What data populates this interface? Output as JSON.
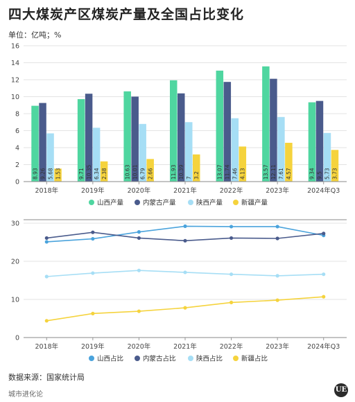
{
  "header": {
    "title": "四大煤炭产区煤炭产量及全国占比变化",
    "unit": "单位：亿吨；%"
  },
  "footer": {
    "source": "数据来源：国家统计局",
    "brand": "城市进化论",
    "logo_text": "UE"
  },
  "chart_data": [
    {
      "type": "bar",
      "categories": [
        "2018年",
        "2019年",
        "2020年",
        "2021年",
        "2022年",
        "2023年",
        "2024年Q3"
      ],
      "ylim": [
        0,
        16
      ],
      "yticks": [
        0,
        2,
        4,
        6,
        8,
        10,
        12,
        14,
        16
      ],
      "grid": true,
      "legend": "bottom",
      "series": [
        {
          "name": "山西产量",
          "color": "#4fd6a0",
          "values": [
            8.93,
            9.71,
            10.63,
            11.93,
            13.07,
            13.57,
            9.34
          ],
          "labels": [
            "8.93",
            "9.71",
            "10.63",
            "11.93",
            "13.07",
            "13.57",
            "9.34"
          ]
        },
        {
          "name": "内蒙古产量",
          "color": "#4a5b8c",
          "values": [
            9.26,
            10.35,
            10.01,
            10.39,
            11.74,
            12.11,
            9.5
          ],
          "labels": [
            "9.26",
            "10.35",
            "10.01",
            "10.39",
            "11.74",
            "12.11",
            "9.5"
          ]
        },
        {
          "name": "陕西产量",
          "color": "#a6def5",
          "values": [
            5.68,
            6.34,
            6.79,
            7,
            7.46,
            7.61,
            5.73
          ],
          "labels": [
            "5.68",
            "6.34",
            "6.79",
            "7",
            "7.46",
            "7.61",
            "5.73"
          ]
        },
        {
          "name": "新疆产量",
          "color": "#f5d33d",
          "values": [
            1.53,
            2.38,
            2.66,
            3.2,
            4.13,
            4.57,
            3.73
          ],
          "labels": [
            "1.53",
            "2.38",
            "2.66",
            "3.2",
            "4.13",
            "4.57",
            "3.73"
          ]
        }
      ]
    },
    {
      "type": "line",
      "categories": [
        "2018年",
        "2019年",
        "2020年",
        "2021年",
        "2022年",
        "2023年",
        "2024年Q3"
      ],
      "ylim": [
        0,
        30
      ],
      "yticks": [
        0,
        10,
        20,
        30
      ],
      "grid": true,
      "legend": "bottom",
      "series": [
        {
          "name": "山西占比",
          "color": "#4aa3dc",
          "values": [
            25.1,
            25.9,
            27.7,
            29.2,
            29.1,
            29.1,
            26.8
          ]
        },
        {
          "name": "内蒙古占比",
          "color": "#4a5b8c",
          "values": [
            26.1,
            27.6,
            26.1,
            25.4,
            26.1,
            26.0,
            27.3
          ]
        },
        {
          "name": "陕西占比",
          "color": "#a6def5",
          "values": [
            16.0,
            16.9,
            17.6,
            17.1,
            16.6,
            16.2,
            16.6
          ]
        },
        {
          "name": "新疆占比",
          "color": "#f5d33d",
          "values": [
            4.4,
            6.3,
            6.9,
            7.8,
            9.2,
            9.8,
            10.7
          ]
        }
      ]
    }
  ]
}
